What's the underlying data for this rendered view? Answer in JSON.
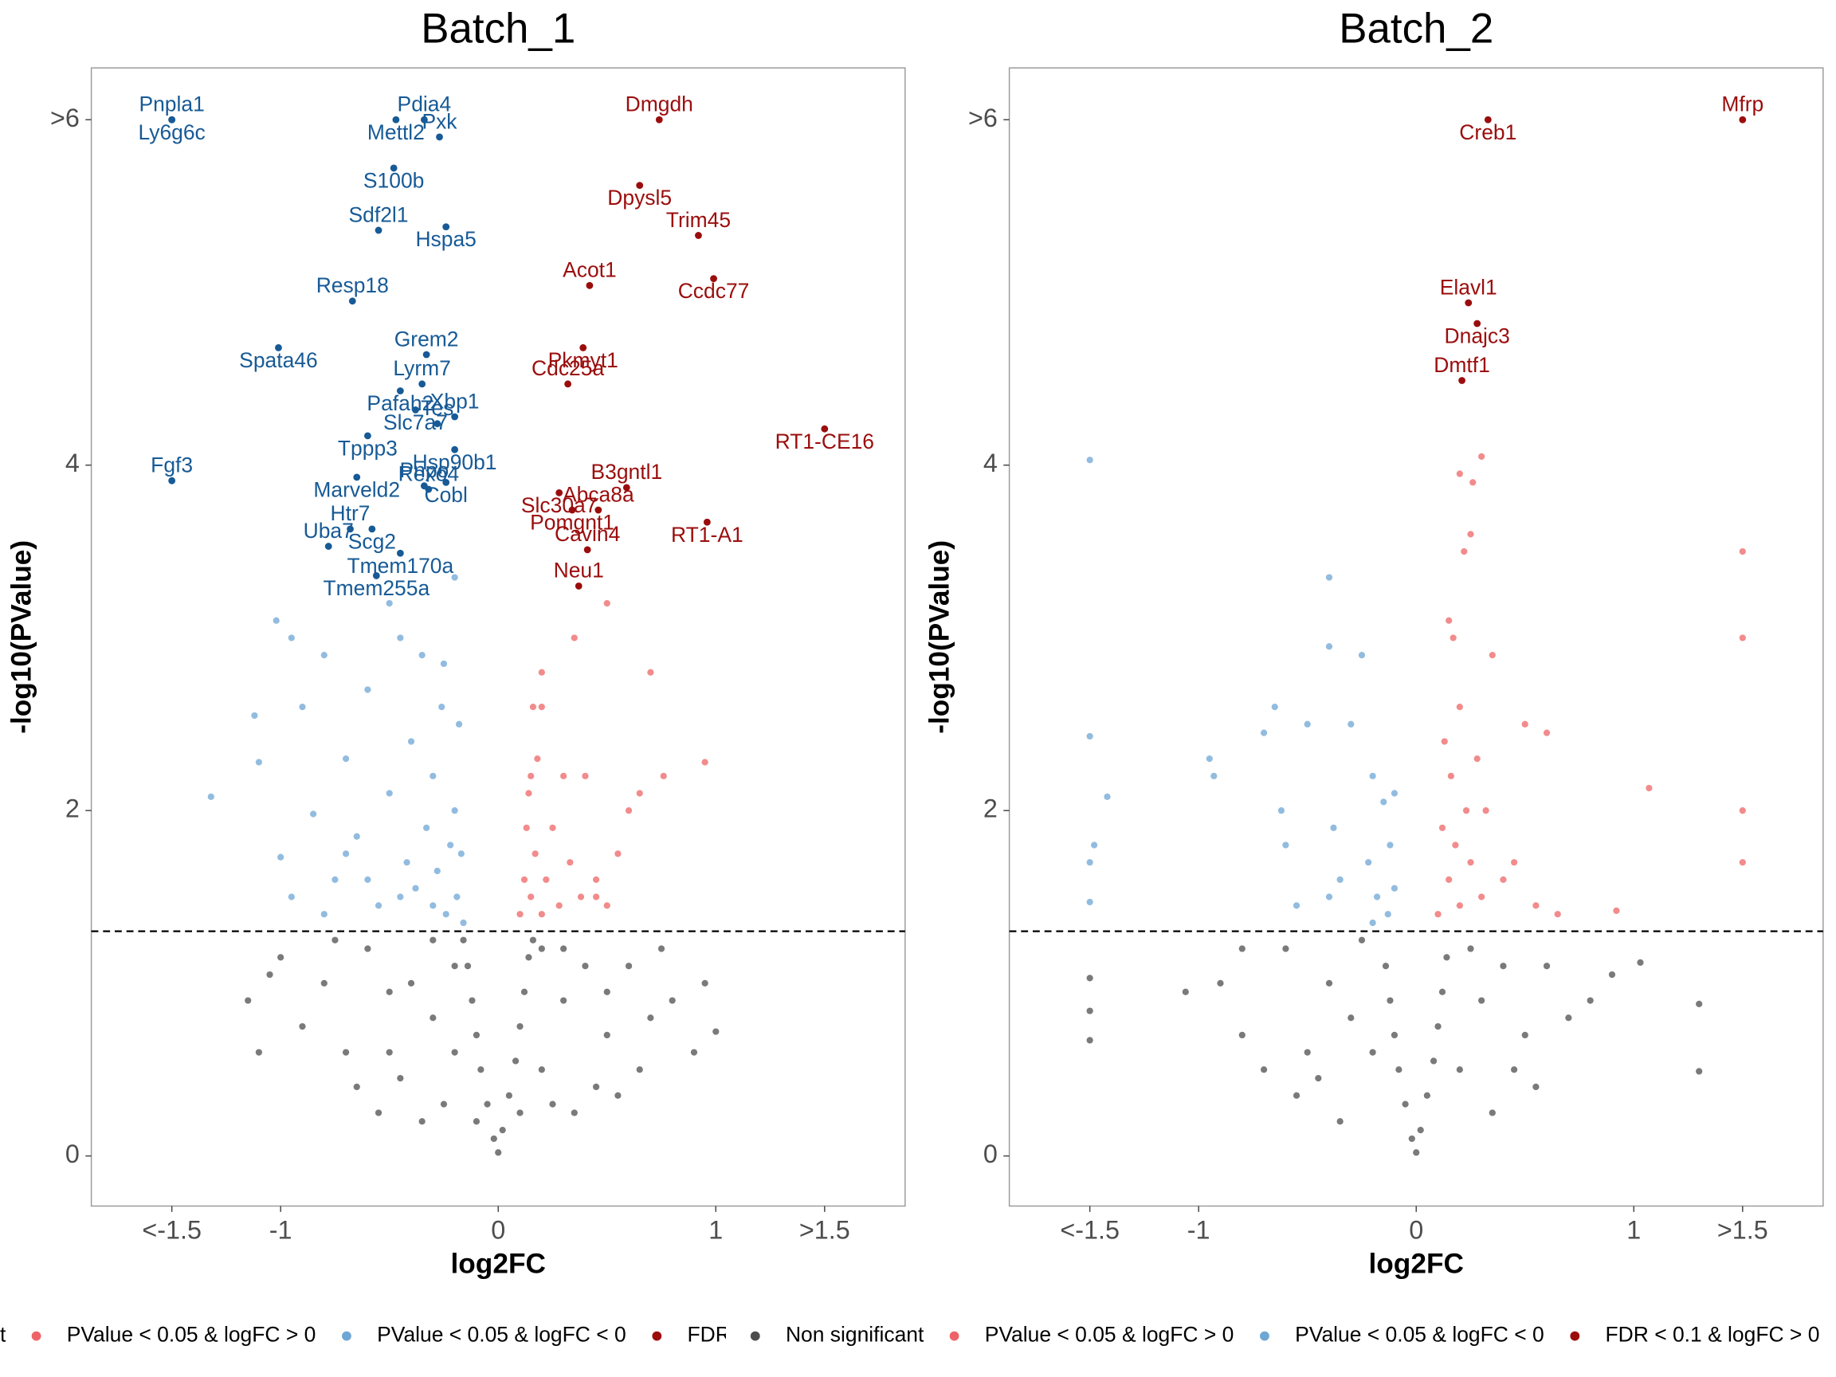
{
  "chart_data": [
    {
      "type": "scatter",
      "title": "Batch_1",
      "x_label": "log2FC",
      "y_label": "-log10(PValue)",
      "xlim": [
        -1.87,
        1.87
      ],
      "ylim": [
        -0.29,
        6.3
      ],
      "xticks": [
        {
          "value": -1.5,
          "label": "<-1.5"
        },
        -1,
        0,
        1,
        {
          "value": 1.5,
          "label": ">1.5"
        }
      ],
      "yticks": [
        0,
        2,
        4,
        {
          "value": 6,
          "label": ">6"
        }
      ],
      "threshold": 1.301,
      "series": [
        {
          "name": "Non significant",
          "color": "#4d4d4d",
          "x": [
            0,
            -0.02,
            0.02,
            -0.05,
            0.05,
            -0.08,
            0.08,
            -0.1,
            0.1,
            -0.12,
            0.12,
            -0.14,
            0.14,
            -0.16,
            0.16,
            -0.2,
            0.2,
            -0.3,
            0.3,
            -0.25,
            0.25,
            -0.4,
            0.4,
            -0.5,
            0.5,
            -0.6,
            0.6,
            -0.35,
            0.35,
            -0.55,
            0.55,
            -0.7,
            0.7,
            -0.8,
            0.8,
            -0.65,
            0.65,
            -0.9,
            0.9,
            -1.0,
            0.95,
            -1.1,
            1.0,
            -1.05,
            -1.15,
            -0.45,
            0.45,
            -0.2,
            0.2,
            -0.3,
            0.3,
            -0.5,
            0.5,
            -0.1,
            0.1,
            -0.75,
            0.75
          ],
          "values": [
            0.02,
            0.1,
            0.15,
            0.3,
            0.35,
            0.5,
            0.55,
            0.7,
            0.75,
            0.9,
            0.95,
            1.1,
            1.15,
            1.25,
            1.25,
            0.6,
            0.5,
            0.8,
            0.9,
            0.3,
            0.3,
            1.0,
            1.1,
            0.6,
            0.7,
            1.2,
            1.1,
            0.2,
            0.25,
            0.25,
            0.35,
            0.6,
            0.8,
            1.0,
            0.9,
            0.4,
            0.5,
            0.75,
            0.6,
            1.15,
            1.0,
            0.6,
            0.72,
            1.05,
            0.9,
            0.45,
            0.4,
            1.1,
            1.2,
            1.25,
            1.2,
            0.95,
            0.95,
            0.2,
            0.25,
            1.25,
            1.2
          ]
        },
        {
          "name": "PValue < 0.05 & logFC > 0",
          "color": "#ee6466",
          "x": [
            0.1,
            0.12,
            0.13,
            0.14,
            0.15,
            0.16,
            0.17,
            0.18,
            0.2,
            0.2,
            0.22,
            0.25,
            0.28,
            0.3,
            0.33,
            0.35,
            0.38,
            0.4,
            0.45,
            0.5,
            0.55,
            0.6,
            0.65,
            0.7,
            0.76,
            0.95,
            0.2,
            0.15,
            0.5,
            0.45
          ],
          "values": [
            1.4,
            1.6,
            1.9,
            2.1,
            1.5,
            2.6,
            1.75,
            2.3,
            1.4,
            2.8,
            1.6,
            1.9,
            1.45,
            2.2,
            1.7,
            3.0,
            1.5,
            2.2,
            1.6,
            1.45,
            1.75,
            2.0,
            2.1,
            2.8,
            2.2,
            2.28,
            2.6,
            2.2,
            3.2,
            1.5
          ]
        },
        {
          "name": "PValue < 0.05 & logFC < 0",
          "color": "#6ea6d4",
          "x": [
            -1.32,
            -1.12,
            -1.1,
            -0.95,
            -1.0,
            -0.9,
            -0.85,
            -0.8,
            -0.75,
            -0.7,
            -0.65,
            -0.6,
            -0.55,
            -0.5,
            -0.45,
            -0.42,
            -0.4,
            -0.38,
            -0.35,
            -0.33,
            -0.3,
            -0.28,
            -0.26,
            -0.24,
            -0.22,
            -0.2,
            -0.19,
            -0.18,
            -0.17,
            -0.16,
            -0.25,
            -0.3,
            -0.45,
            -0.6,
            -0.7,
            -0.8,
            -1.02,
            -0.95,
            -0.5,
            -0.2
          ],
          "values": [
            2.08,
            2.55,
            2.28,
            1.5,
            1.73,
            2.6,
            1.98,
            2.9,
            1.6,
            2.3,
            1.85,
            2.7,
            1.45,
            2.1,
            3.0,
            1.7,
            2.4,
            1.55,
            2.9,
            1.9,
            2.2,
            1.65,
            2.6,
            1.4,
            1.8,
            2.0,
            1.5,
            2.5,
            1.75,
            1.35,
            2.85,
            1.45,
            1.5,
            1.6,
            1.75,
            1.4,
            3.1,
            3.0,
            3.2,
            3.35
          ]
        },
        {
          "name": "FDR < 0.1 & logFC > 0",
          "color": "#9b0d0d",
          "labels": [
            "Dmgdh",
            "Dpysl5",
            "Trim45",
            "Ccdc77",
            "Acot1",
            "Pkmyt1",
            "Cdc25a",
            "RT1-CE16",
            "B3gntl1",
            "Slc30a7",
            "Abca8a",
            "Pomgnt1",
            "Cavin4",
            "RT1-A1",
            "Neu1"
          ],
          "x": [
            0.74,
            0.65,
            0.92,
            0.99,
            0.42,
            0.39,
            0.32,
            1.5,
            0.59,
            0.28,
            0.46,
            0.34,
            0.41,
            0.96,
            0.37
          ],
          "values": [
            6,
            5.62,
            5.33,
            5.08,
            5.04,
            4.68,
            4.47,
            4.21,
            3.87,
            3.84,
            3.74,
            3.74,
            3.51,
            3.67,
            3.3
          ]
        },
        {
          "color": "#175a96",
          "labels": [
            "Pnpla1",
            "Ly6g6c",
            "Pdia4",
            "Mettl2",
            "Pxk",
            "S100b",
            "Sdf2l1",
            "Hspa5",
            "Resp18",
            "Spata46",
            "Grem2",
            "Pafah2",
            "Lyrm7",
            "Slc7a7",
            "Xbp1",
            "Tppp3",
            "Tes",
            "Hsp90b1",
            "Fgf3",
            "Marveld2",
            "Pnpo",
            "Cobl",
            "Htr7",
            "Scg2",
            "Rexo4",
            "Tmem170a",
            "Uba7",
            "Tmem255a"
          ],
          "x": [
            -1.5,
            -1.5,
            -0.34,
            -0.47,
            -0.27,
            -0.48,
            -0.55,
            -0.24,
            -0.67,
            -1.01,
            -0.33,
            -0.45,
            -0.35,
            -0.38,
            -0.2,
            -0.6,
            -0.28,
            -0.2,
            -1.5,
            -0.65,
            -0.34,
            -0.24,
            -0.68,
            -0.58,
            -0.32,
            -0.45,
            -0.78,
            -0.56
          ],
          "values": [
            6,
            6,
            6,
            6,
            5.9,
            5.72,
            5.36,
            5.38,
            4.95,
            4.68,
            4.64,
            4.43,
            4.47,
            4.32,
            4.28,
            4.17,
            4.24,
            4.09,
            3.91,
            3.93,
            3.88,
            3.9,
            3.63,
            3.63,
            3.86,
            3.49,
            3.53,
            3.36
          ]
        }
      ]
    },
    {
      "type": "scatter",
      "title": "Batch_2",
      "x_label": "log2FC",
      "y_label": "-log10(PValue)",
      "xlim": [
        -1.87,
        1.87
      ],
      "ylim": [
        -0.29,
        6.3
      ],
      "xticks": [
        {
          "value": -1.5,
          "label": "<-1.5"
        },
        -1,
        0,
        1,
        {
          "value": 1.5,
          "label": ">1.5"
        }
      ],
      "yticks": [
        0,
        2,
        4,
        {
          "value": 6,
          "label": ">6"
        }
      ],
      "threshold": 1.301,
      "series": [
        {
          "name": "Non significant",
          "color": "#4d4d4d",
          "x": [
            0,
            -0.02,
            0.02,
            -0.05,
            0.05,
            -0.08,
            0.08,
            -0.1,
            0.1,
            -0.12,
            0.12,
            -0.14,
            0.14,
            -0.2,
            0.2,
            -0.3,
            0.3,
            -0.4,
            0.4,
            -0.5,
            0.5,
            -0.6,
            0.6,
            -0.7,
            0.7,
            -0.8,
            0.8,
            -0.35,
            0.35,
            -0.55,
            0.55,
            -1.5,
            -1.5,
            -1.5,
            1.3,
            1.3,
            1.03,
            -1.06,
            -0.8,
            -0.9,
            0.9,
            -0.25,
            0.25,
            -0.45,
            0.45
          ],
          "values": [
            0.02,
            0.1,
            0.15,
            0.3,
            0.35,
            0.5,
            0.55,
            0.7,
            0.75,
            0.9,
            0.95,
            1.1,
            1.15,
            0.6,
            0.5,
            0.8,
            0.9,
            1.0,
            1.1,
            0.6,
            0.7,
            1.2,
            1.1,
            0.5,
            0.8,
            1.2,
            0.9,
            0.2,
            0.25,
            0.35,
            0.4,
            1.03,
            0.84,
            0.67,
            0.88,
            0.49,
            1.12,
            0.95,
            0.7,
            1.0,
            1.05,
            1.25,
            1.2,
            0.45,
            0.5
          ]
        },
        {
          "name": "PValue < 0.05 & logFC > 0",
          "color": "#ee6466",
          "x": [
            0.1,
            0.12,
            0.13,
            0.15,
            0.16,
            0.17,
            0.18,
            0.2,
            0.2,
            0.22,
            0.23,
            0.25,
            0.26,
            0.28,
            0.3,
            0.3,
            0.32,
            0.35,
            0.4,
            0.45,
            0.5,
            0.55,
            0.6,
            0.65,
            0.92,
            1.07,
            1.5,
            1.5,
            1.5,
            1.5,
            0.2,
            0.15,
            0.25
          ],
          "values": [
            1.4,
            1.9,
            2.4,
            1.6,
            2.2,
            3.0,
            1.8,
            2.6,
            1.45,
            3.5,
            2.0,
            1.7,
            3.9,
            2.3,
            4.05,
            1.5,
            2.0,
            2.9,
            1.6,
            1.7,
            2.5,
            1.45,
            2.45,
            1.4,
            1.42,
            2.13,
            3.5,
            3.0,
            2.0,
            1.7,
            3.95,
            3.1,
            3.6
          ]
        },
        {
          "name": "PValue < 0.05 & logFC < 0",
          "color": "#6ea6d4",
          "x": [
            -1.5,
            -1.5,
            -1.42,
            -1.48,
            -1.5,
            -1.5,
            -0.95,
            -0.93,
            -0.7,
            -0.62,
            -0.6,
            -0.5,
            -0.55,
            -0.4,
            -0.38,
            -0.35,
            -0.3,
            -0.25,
            -0.22,
            -0.2,
            -0.18,
            -0.15,
            -0.13,
            -0.12,
            -0.1,
            -0.1,
            -0.4,
            -0.2,
            -0.4,
            -0.65
          ],
          "values": [
            4.03,
            2.43,
            2.08,
            1.8,
            1.7,
            1.47,
            2.3,
            2.2,
            2.45,
            2.0,
            1.8,
            2.5,
            1.45,
            2.95,
            1.9,
            1.6,
            2.5,
            2.9,
            1.7,
            2.2,
            1.5,
            2.05,
            1.4,
            1.8,
            2.1,
            1.55,
            1.5,
            1.35,
            3.35,
            2.6
          ]
        },
        {
          "name": "FDR < 0.1 & logFC > 0",
          "color": "#9b0d0d",
          "labels": [
            "Mfrp",
            "Creb1",
            "Elavl1",
            "Dnajc3",
            "Dmtf1"
          ],
          "x": [
            1.5,
            0.33,
            0.24,
            0.28,
            0.21
          ],
          "values": [
            6,
            6,
            4.94,
            4.82,
            4.49
          ]
        }
      ]
    }
  ]
}
